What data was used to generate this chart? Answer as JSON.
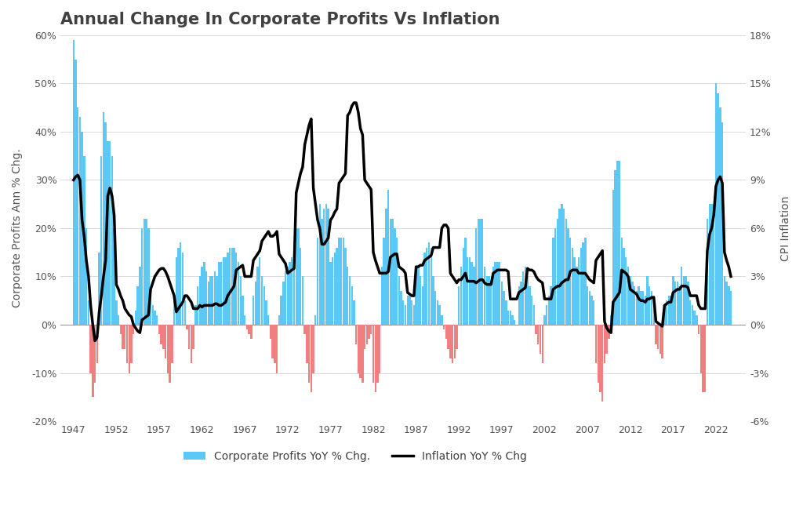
{
  "title": "Annual Change In Corporate Profits Vs Inflation",
  "ylabel_left": "Corporate Profits Ann % Chg.",
  "ylabel_right": "CPI Inflation",
  "ylim_left": [
    -0.2,
    0.6
  ],
  "ylim_right": [
    -0.06,
    0.18
  ],
  "yticks_left": [
    -0.2,
    -0.1,
    0.0,
    0.1,
    0.2,
    0.3,
    0.4,
    0.5,
    0.6
  ],
  "yticks_right": [
    -0.06,
    -0.03,
    0.0,
    0.03,
    0.06,
    0.09,
    0.12,
    0.15,
    0.18
  ],
  "background_color": "#ffffff",
  "bar_color_pos": "#5bc8f5",
  "bar_color_neg": "#f08080",
  "line_color": "#000000",
  "title_color": "#404040",
  "quarters": [
    1947.0,
    1947.25,
    1947.5,
    1947.75,
    1948.0,
    1948.25,
    1948.5,
    1948.75,
    1949.0,
    1949.25,
    1949.5,
    1949.75,
    1950.0,
    1950.25,
    1950.5,
    1950.75,
    1951.0,
    1951.25,
    1951.5,
    1951.75,
    1952.0,
    1952.25,
    1952.5,
    1952.75,
    1953.0,
    1953.25,
    1953.5,
    1953.75,
    1954.0,
    1954.25,
    1954.5,
    1954.75,
    1955.0,
    1955.25,
    1955.5,
    1955.75,
    1956.0,
    1956.25,
    1956.5,
    1956.75,
    1957.0,
    1957.25,
    1957.5,
    1957.75,
    1958.0,
    1958.25,
    1958.5,
    1958.75,
    1959.0,
    1959.25,
    1959.5,
    1959.75,
    1960.0,
    1960.25,
    1960.5,
    1960.75,
    1961.0,
    1961.25,
    1961.5,
    1961.75,
    1962.0,
    1962.25,
    1962.5,
    1962.75,
    1963.0,
    1963.25,
    1963.5,
    1963.75,
    1964.0,
    1964.25,
    1964.5,
    1964.75,
    1965.0,
    1965.25,
    1965.5,
    1965.75,
    1966.0,
    1966.25,
    1966.5,
    1966.75,
    1967.0,
    1967.25,
    1967.5,
    1967.75,
    1968.0,
    1968.25,
    1968.5,
    1968.75,
    1969.0,
    1969.25,
    1969.5,
    1969.75,
    1970.0,
    1970.25,
    1970.5,
    1970.75,
    1971.0,
    1971.25,
    1971.5,
    1971.75,
    1972.0,
    1972.25,
    1972.5,
    1972.75,
    1973.0,
    1973.25,
    1973.5,
    1973.75,
    1974.0,
    1974.25,
    1974.5,
    1974.75,
    1975.0,
    1975.25,
    1975.5,
    1975.75,
    1976.0,
    1976.25,
    1976.5,
    1976.75,
    1977.0,
    1977.25,
    1977.5,
    1977.75,
    1978.0,
    1978.25,
    1978.5,
    1978.75,
    1979.0,
    1979.25,
    1979.5,
    1979.75,
    1980.0,
    1980.25,
    1980.5,
    1980.75,
    1981.0,
    1981.25,
    1981.5,
    1981.75,
    1982.0,
    1982.25,
    1982.5,
    1982.75,
    1983.0,
    1983.25,
    1983.5,
    1983.75,
    1984.0,
    1984.25,
    1984.5,
    1984.75,
    1985.0,
    1985.25,
    1985.5,
    1985.75,
    1986.0,
    1986.25,
    1986.5,
    1986.75,
    1987.0,
    1987.25,
    1987.5,
    1987.75,
    1988.0,
    1988.25,
    1988.5,
    1988.75,
    1989.0,
    1989.25,
    1989.5,
    1989.75,
    1990.0,
    1990.25,
    1990.5,
    1990.75,
    1991.0,
    1991.25,
    1991.5,
    1991.75,
    1992.0,
    1992.25,
    1992.5,
    1992.75,
    1993.0,
    1993.25,
    1993.5,
    1993.75,
    1994.0,
    1994.25,
    1994.5,
    1994.75,
    1995.0,
    1995.25,
    1995.5,
    1995.75,
    1996.0,
    1996.25,
    1996.5,
    1996.75,
    1997.0,
    1997.25,
    1997.5,
    1997.75,
    1998.0,
    1998.25,
    1998.5,
    1998.75,
    1999.0,
    1999.25,
    1999.5,
    1999.75,
    2000.0,
    2000.25,
    2000.5,
    2000.75,
    2001.0,
    2001.25,
    2001.5,
    2001.75,
    2002.0,
    2002.25,
    2002.5,
    2002.75,
    2003.0,
    2003.25,
    2003.5,
    2003.75,
    2004.0,
    2004.25,
    2004.5,
    2004.75,
    2005.0,
    2005.25,
    2005.5,
    2005.75,
    2006.0,
    2006.25,
    2006.5,
    2006.75,
    2007.0,
    2007.25,
    2007.5,
    2007.75,
    2008.0,
    2008.25,
    2008.5,
    2008.75,
    2009.0,
    2009.25,
    2009.5,
    2009.75,
    2010.0,
    2010.25,
    2010.5,
    2010.75,
    2011.0,
    2011.25,
    2011.5,
    2011.75,
    2012.0,
    2012.25,
    2012.5,
    2012.75,
    2013.0,
    2013.25,
    2013.5,
    2013.75,
    2014.0,
    2014.25,
    2014.5,
    2014.75,
    2015.0,
    2015.25,
    2015.5,
    2015.75,
    2016.0,
    2016.25,
    2016.5,
    2016.75,
    2017.0,
    2017.25,
    2017.5,
    2017.75,
    2018.0,
    2018.25,
    2018.5,
    2018.75,
    2019.0,
    2019.25,
    2019.5,
    2019.75,
    2020.0,
    2020.25,
    2020.5,
    2020.75,
    2021.0,
    2021.25,
    2021.5,
    2021.75,
    2022.0,
    2022.25,
    2022.5,
    2022.75,
    2023.0,
    2023.25,
    2023.5,
    2023.75
  ],
  "profits": [
    0.59,
    0.55,
    0.45,
    0.43,
    0.4,
    0.35,
    0.2,
    0.05,
    -0.1,
    -0.15,
    -0.12,
    -0.08,
    0.15,
    0.35,
    0.44,
    0.42,
    0.38,
    0.38,
    0.35,
    0.2,
    0.05,
    0.02,
    -0.02,
    -0.05,
    -0.05,
    -0.08,
    -0.1,
    -0.08,
    -0.02,
    0.03,
    0.08,
    0.12,
    0.2,
    0.22,
    0.22,
    0.2,
    0.06,
    0.04,
    0.03,
    0.02,
    -0.02,
    -0.04,
    -0.05,
    -0.07,
    -0.1,
    -0.12,
    -0.08,
    0.05,
    0.14,
    0.16,
    0.17,
    0.15,
    0.05,
    -0.01,
    -0.05,
    -0.08,
    -0.05,
    0.04,
    0.08,
    0.1,
    0.12,
    0.13,
    0.11,
    0.09,
    0.1,
    0.1,
    0.11,
    0.1,
    0.13,
    0.13,
    0.14,
    0.14,
    0.15,
    0.16,
    0.16,
    0.16,
    0.15,
    0.13,
    0.1,
    0.06,
    0.02,
    -0.01,
    -0.02,
    -0.03,
    0.06,
    0.09,
    0.12,
    0.14,
    0.1,
    0.08,
    0.05,
    0.02,
    -0.03,
    -0.07,
    -0.08,
    -0.1,
    0.02,
    0.06,
    0.09,
    0.11,
    0.12,
    0.13,
    0.14,
    0.16,
    0.2,
    0.2,
    0.16,
    0.1,
    -0.02,
    -0.08,
    -0.12,
    -0.14,
    -0.1,
    0.02,
    0.18,
    0.25,
    0.22,
    0.24,
    0.25,
    0.24,
    0.13,
    0.14,
    0.15,
    0.16,
    0.18,
    0.18,
    0.18,
    0.16,
    0.12,
    0.1,
    0.08,
    0.05,
    -0.04,
    -0.1,
    -0.11,
    -0.12,
    -0.05,
    -0.04,
    -0.03,
    -0.02,
    -0.12,
    -0.14,
    -0.12,
    -0.1,
    0.12,
    0.18,
    0.24,
    0.28,
    0.22,
    0.22,
    0.2,
    0.18,
    0.1,
    0.07,
    0.05,
    0.04,
    0.06,
    0.06,
    0.05,
    0.04,
    0.12,
    0.12,
    0.1,
    0.08,
    0.15,
    0.16,
    0.17,
    0.16,
    0.1,
    0.07,
    0.05,
    0.04,
    0.02,
    -0.01,
    -0.03,
    -0.05,
    -0.07,
    -0.08,
    -0.07,
    -0.05,
    0.08,
    0.12,
    0.16,
    0.18,
    0.14,
    0.14,
    0.13,
    0.12,
    0.2,
    0.22,
    0.22,
    0.22,
    0.12,
    0.1,
    0.1,
    0.09,
    0.12,
    0.13,
    0.13,
    0.13,
    0.09,
    0.07,
    0.05,
    0.03,
    0.03,
    0.02,
    0.01,
    0.0,
    0.08,
    0.09,
    0.11,
    0.12,
    0.1,
    0.08,
    0.06,
    0.04,
    -0.02,
    -0.04,
    -0.06,
    -0.08,
    0.02,
    0.04,
    0.06,
    0.08,
    0.18,
    0.2,
    0.22,
    0.24,
    0.25,
    0.24,
    0.22,
    0.2,
    0.18,
    0.16,
    0.14,
    0.12,
    0.14,
    0.16,
    0.17,
    0.18,
    0.08,
    0.07,
    0.06,
    0.05,
    -0.08,
    -0.12,
    -0.14,
    -0.16,
    -0.08,
    -0.06,
    -0.03,
    0.02,
    0.28,
    0.32,
    0.34,
    0.34,
    0.18,
    0.16,
    0.14,
    0.12,
    0.1,
    0.09,
    0.08,
    0.07,
    0.08,
    0.07,
    0.07,
    0.06,
    0.1,
    0.08,
    0.07,
    0.06,
    -0.04,
    -0.05,
    -0.06,
    -0.07,
    0.04,
    0.05,
    0.06,
    0.06,
    0.1,
    0.09,
    0.09,
    0.08,
    0.12,
    0.1,
    0.1,
    0.09,
    0.05,
    0.04,
    0.03,
    0.02,
    -0.02,
    -0.1,
    -0.14,
    -0.14,
    0.22,
    0.25,
    0.25,
    0.25,
    0.5,
    0.48,
    0.45,
    0.42,
    0.1,
    0.09,
    0.08,
    0.07
  ],
  "inflation": [
    0.09,
    0.092,
    0.093,
    0.09,
    0.065,
    0.055,
    0.04,
    0.03,
    0.012,
    0.0,
    -0.01,
    -0.008,
    0.008,
    0.018,
    0.03,
    0.04,
    0.08,
    0.085,
    0.08,
    0.068,
    0.025,
    0.022,
    0.018,
    0.015,
    0.01,
    0.008,
    0.006,
    0.005,
    0.0,
    -0.002,
    -0.004,
    -0.005,
    0.003,
    0.004,
    0.005,
    0.006,
    0.022,
    0.026,
    0.03,
    0.032,
    0.034,
    0.035,
    0.035,
    0.033,
    0.03,
    0.026,
    0.022,
    0.018,
    0.008,
    0.01,
    0.012,
    0.014,
    0.018,
    0.018,
    0.016,
    0.014,
    0.01,
    0.01,
    0.01,
    0.012,
    0.011,
    0.012,
    0.012,
    0.012,
    0.012,
    0.012,
    0.013,
    0.013,
    0.012,
    0.012,
    0.013,
    0.014,
    0.018,
    0.02,
    0.022,
    0.024,
    0.034,
    0.035,
    0.036,
    0.037,
    0.03,
    0.03,
    0.03,
    0.03,
    0.04,
    0.042,
    0.044,
    0.046,
    0.052,
    0.054,
    0.056,
    0.058,
    0.055,
    0.055,
    0.056,
    0.058,
    0.044,
    0.042,
    0.04,
    0.038,
    0.032,
    0.033,
    0.034,
    0.035,
    0.082,
    0.088,
    0.094,
    0.098,
    0.112,
    0.118,
    0.124,
    0.128,
    0.085,
    0.075,
    0.065,
    0.06,
    0.05,
    0.05,
    0.052,
    0.054,
    0.065,
    0.067,
    0.07,
    0.072,
    0.088,
    0.09,
    0.092,
    0.094,
    0.13,
    0.132,
    0.136,
    0.138,
    0.138,
    0.132,
    0.122,
    0.118,
    0.09,
    0.088,
    0.086,
    0.084,
    0.045,
    0.04,
    0.036,
    0.032,
    0.032,
    0.032,
    0.032,
    0.033,
    0.042,
    0.043,
    0.044,
    0.044,
    0.036,
    0.035,
    0.034,
    0.032,
    0.02,
    0.019,
    0.018,
    0.018,
    0.036,
    0.036,
    0.037,
    0.037,
    0.04,
    0.041,
    0.042,
    0.043,
    0.048,
    0.048,
    0.048,
    0.048,
    0.06,
    0.062,
    0.062,
    0.06,
    0.032,
    0.03,
    0.028,
    0.026,
    0.028,
    0.028,
    0.03,
    0.032,
    0.027,
    0.027,
    0.027,
    0.027,
    0.026,
    0.027,
    0.028,
    0.028,
    0.026,
    0.025,
    0.025,
    0.025,
    0.032,
    0.033,
    0.034,
    0.034,
    0.034,
    0.034,
    0.034,
    0.033,
    0.016,
    0.016,
    0.016,
    0.016,
    0.02,
    0.021,
    0.022,
    0.023,
    0.035,
    0.034,
    0.034,
    0.033,
    0.03,
    0.028,
    0.027,
    0.026,
    0.016,
    0.016,
    0.016,
    0.016,
    0.022,
    0.023,
    0.024,
    0.024,
    0.026,
    0.027,
    0.028,
    0.028,
    0.033,
    0.034,
    0.034,
    0.034,
    0.032,
    0.032,
    0.032,
    0.032,
    0.03,
    0.028,
    0.027,
    0.026,
    0.04,
    0.042,
    0.044,
    0.046,
    0.002,
    -0.002,
    -0.004,
    -0.005,
    0.014,
    0.016,
    0.018,
    0.02,
    0.034,
    0.033,
    0.032,
    0.03,
    0.022,
    0.021,
    0.02,
    0.019,
    0.016,
    0.015,
    0.015,
    0.014,
    0.016,
    0.016,
    0.017,
    0.017,
    0.002,
    0.001,
    0.0,
    -0.001,
    0.012,
    0.013,
    0.014,
    0.014,
    0.02,
    0.021,
    0.022,
    0.022,
    0.024,
    0.024,
    0.024,
    0.023,
    0.018,
    0.018,
    0.018,
    0.018,
    0.012,
    0.01,
    0.01,
    0.01,
    0.046,
    0.056,
    0.06,
    0.068,
    0.086,
    0.09,
    0.092,
    0.088,
    0.045,
    0.04,
    0.036,
    0.03
  ]
}
